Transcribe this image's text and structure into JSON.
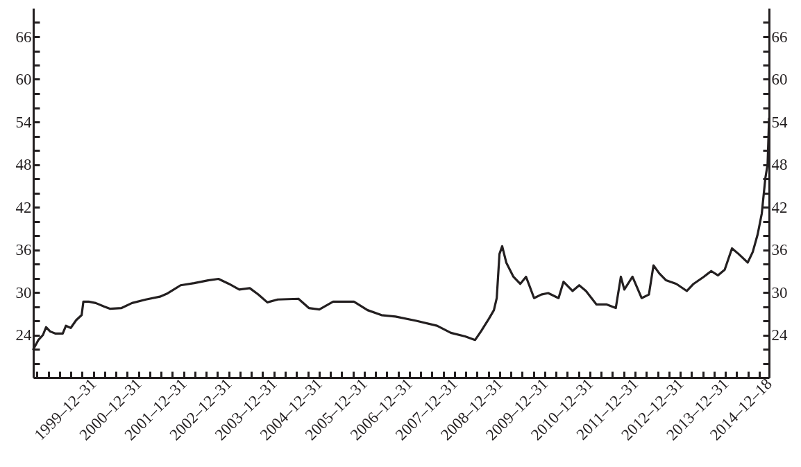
{
  "chart_data": {
    "type": "line",
    "x": [
      "1998-09-01",
      "1998-10-12",
      "1998-11-18",
      "1998-12-13",
      "1999-01-15",
      "1999-02-28",
      "1999-04-27",
      "1999-05-23",
      "1999-07-01",
      "1999-08-14",
      "1999-09-27",
      "1999-10-11",
      "1999-11-24",
      "2000-01-19",
      "2000-03-28",
      "2000-05-12",
      "2000-08-15",
      "2000-11-07",
      "2001-02-28",
      "2001-06-21",
      "2001-08-15",
      "2001-12-05",
      "2002-03-25",
      "2002-07-16",
      "2002-10-08",
      "2003-01-01",
      "2003-03-25",
      "2003-06-18",
      "2003-08-26",
      "2003-11-07",
      "2004-01-30",
      "2004-07-16",
      "2004-10-08",
      "2005-01-01",
      "2005-04-22",
      "2005-10-08",
      "2006-01-26",
      "2006-05-19",
      "2006-09-09",
      "2007-02-24",
      "2007-08-11",
      "2007-12-01",
      "2008-03-25",
      "2008-06-14",
      "2008-07-31",
      "2008-10-04",
      "2008-11-13",
      "2008-12-06",
      "2008-12-28",
      "2009-01-19",
      "2009-02-21",
      "2009-04-20",
      "2009-06-14",
      "2009-07-31",
      "2009-10-04",
      "2009-12-01",
      "2010-01-26",
      "2010-04-20",
      "2010-05-30",
      "2010-08-11",
      "2010-10-04",
      "2010-11-28",
      "2011-02-21",
      "2011-05-15",
      "2011-07-27",
      "2011-09-06",
      "2011-10-04",
      "2011-12-09",
      "2012-02-21",
      "2012-04-20",
      "2012-05-27",
      "2012-07-12",
      "2012-09-06",
      "2012-11-28",
      "2013-02-21",
      "2013-04-16",
      "2013-07-08",
      "2013-09-06",
      "2013-10-30",
      "2013-12-24",
      "2014-02-21",
      "2014-04-16",
      "2014-06-28",
      "2014-08-08",
      "2014-09-17",
      "2014-10-20",
      "2014-11-18",
      "2014-12-06",
      "2014-12-18"
    ],
    "series": [
      {
        "color": "#231f20",
        "values": [
          22.0,
          23.3,
          24.0,
          25.1,
          24.5,
          24.2,
          24.2,
          25.3,
          25.0,
          26.1,
          26.8,
          28.7,
          28.7,
          28.5,
          28.0,
          27.7,
          27.8,
          28.5,
          29.0,
          29.4,
          29.8,
          31.0,
          31.3,
          31.7,
          31.9,
          31.2,
          30.4,
          30.6,
          29.7,
          28.6,
          29.0,
          29.1,
          27.8,
          27.6,
          28.7,
          28.7,
          27.5,
          26.8,
          26.6,
          26.0,
          25.3,
          24.3,
          23.8,
          23.3,
          24.5,
          26.3,
          27.5,
          29.2,
          35.4,
          36.5,
          34.2,
          32.2,
          31.2,
          32.2,
          29.2,
          29.7,
          29.9,
          29.2,
          31.5,
          30.2,
          31.0,
          30.2,
          28.3,
          28.3,
          27.8,
          32.2,
          30.4,
          32.2,
          29.2,
          29.7,
          33.8,
          32.7,
          31.7,
          31.2,
          30.2,
          31.2,
          32.2,
          33.0,
          32.4,
          33.2,
          36.2,
          35.4,
          34.2,
          35.7,
          38.2,
          41.1,
          46.1,
          48.0,
          54.5
        ]
      }
    ],
    "xlim": [
      "1998-09-01",
      "2014-12-18"
    ],
    "xticks": [
      {
        "value": "1998-09-30",
        "label": null
      },
      {
        "value": "1998-12-31",
        "label": null
      },
      {
        "value": "1999-03-31",
        "label": null
      },
      {
        "value": "1999-06-30",
        "label": null
      },
      {
        "value": "1999-09-30",
        "label": null
      },
      {
        "value": "1999-12-31",
        "label": "1999–12–31"
      },
      {
        "value": "2000-03-31",
        "label": null
      },
      {
        "value": "2000-06-30",
        "label": null
      },
      {
        "value": "2000-09-30",
        "label": null
      },
      {
        "value": "2000-12-31",
        "label": "2000–12–31"
      },
      {
        "value": "2001-03-31",
        "label": null
      },
      {
        "value": "2001-06-30",
        "label": null
      },
      {
        "value": "2001-09-30",
        "label": null
      },
      {
        "value": "2001-12-31",
        "label": "2001–12–31"
      },
      {
        "value": "2002-03-31",
        "label": null
      },
      {
        "value": "2002-06-30",
        "label": null
      },
      {
        "value": "2002-09-30",
        "label": null
      },
      {
        "value": "2002-12-31",
        "label": "2002–12–31"
      },
      {
        "value": "2003-03-31",
        "label": null
      },
      {
        "value": "2003-06-30",
        "label": null
      },
      {
        "value": "2003-09-30",
        "label": null
      },
      {
        "value": "2003-12-31",
        "label": "2003–12–31"
      },
      {
        "value": "2004-03-31",
        "label": null
      },
      {
        "value": "2004-06-30",
        "label": null
      },
      {
        "value": "2004-09-30",
        "label": null
      },
      {
        "value": "2004-12-31",
        "label": "2004–12–31"
      },
      {
        "value": "2005-03-31",
        "label": null
      },
      {
        "value": "2005-06-30",
        "label": null
      },
      {
        "value": "2005-09-30",
        "label": null
      },
      {
        "value": "2005-12-31",
        "label": "2005–12–31"
      },
      {
        "value": "2006-03-31",
        "label": null
      },
      {
        "value": "2006-06-30",
        "label": null
      },
      {
        "value": "2006-09-30",
        "label": null
      },
      {
        "value": "2006-12-31",
        "label": "2006–12–31"
      },
      {
        "value": "2007-03-31",
        "label": null
      },
      {
        "value": "2007-06-30",
        "label": null
      },
      {
        "value": "2007-09-30",
        "label": null
      },
      {
        "value": "2007-12-31",
        "label": "2007–12–31"
      },
      {
        "value": "2008-03-31",
        "label": null
      },
      {
        "value": "2008-06-30",
        "label": null
      },
      {
        "value": "2008-09-30",
        "label": null
      },
      {
        "value": "2008-12-31",
        "label": "2008–12–31"
      },
      {
        "value": "2009-03-31",
        "label": null
      },
      {
        "value": "2009-06-30",
        "label": null
      },
      {
        "value": "2009-09-30",
        "label": null
      },
      {
        "value": "2009-12-31",
        "label": "2009–12–31"
      },
      {
        "value": "2010-03-31",
        "label": null
      },
      {
        "value": "2010-06-30",
        "label": null
      },
      {
        "value": "2010-09-30",
        "label": null
      },
      {
        "value": "2010-12-31",
        "label": "2010–12–31"
      },
      {
        "value": "2011-03-31",
        "label": null
      },
      {
        "value": "2011-06-30",
        "label": null
      },
      {
        "value": "2011-09-30",
        "label": null
      },
      {
        "value": "2011-12-31",
        "label": "2011–12–31"
      },
      {
        "value": "2012-03-31",
        "label": null
      },
      {
        "value": "2012-06-30",
        "label": null
      },
      {
        "value": "2012-09-30",
        "label": null
      },
      {
        "value": "2012-12-31",
        "label": "2012–12–31"
      },
      {
        "value": "2013-03-31",
        "label": null
      },
      {
        "value": "2013-06-30",
        "label": null
      },
      {
        "value": "2013-09-30",
        "label": null
      },
      {
        "value": "2013-12-31",
        "label": "2013–12–31"
      },
      {
        "value": "2014-03-31",
        "label": null
      },
      {
        "value": "2014-06-30",
        "label": null
      },
      {
        "value": "2014-09-30",
        "label": null
      },
      {
        "value": "2014-12-18",
        "label": "2014–12–18"
      }
    ],
    "ylim": [
      18,
      70
    ],
    "yticks": [
      {
        "value": 20,
        "label": null
      },
      {
        "value": 22,
        "label": null
      },
      24,
      {
        "value": 26,
        "label": null
      },
      {
        "value": 28,
        "label": null
      },
      30,
      {
        "value": 32,
        "label": null
      },
      {
        "value": 34,
        "label": null
      },
      36,
      {
        "value": 38,
        "label": null
      },
      {
        "value": 40,
        "label": null
      },
      42,
      {
        "value": 44,
        "label": null
      },
      {
        "value": 46,
        "label": null
      },
      48,
      {
        "value": 50,
        "label": null
      },
      {
        "value": 52,
        "label": null
      },
      54,
      {
        "value": 56,
        "label": null
      },
      {
        "value": 58,
        "label": null
      },
      60,
      {
        "value": 62,
        "label": null
      },
      {
        "value": 64,
        "label": null
      },
      66,
      {
        "value": 68,
        "label": null
      }
    ],
    "y2lim": [
      18,
      70
    ],
    "y2ticks": [
      {
        "value": 20,
        "label": null
      },
      {
        "value": 22,
        "label": null
      },
      24,
      {
        "value": 26,
        "label": null
      },
      {
        "value": 28,
        "label": null
      },
      30,
      {
        "value": 32,
        "label": null
      },
      {
        "value": 34,
        "label": null
      },
      36,
      {
        "value": 38,
        "label": null
      },
      {
        "value": 40,
        "label": null
      },
      42,
      {
        "value": 44,
        "label": null
      },
      {
        "value": 46,
        "label": null
      },
      48,
      {
        "value": 50,
        "label": null
      },
      {
        "value": 52,
        "label": null
      },
      54,
      {
        "value": 56,
        "label": null
      },
      {
        "value": 58,
        "label": null
      },
      60,
      {
        "value": 62,
        "label": null
      },
      {
        "value": 64,
        "label": null
      },
      66,
      {
        "value": 68,
        "label": null
      }
    ],
    "grid": false,
    "marker": "none",
    "line_style": "solid"
  }
}
